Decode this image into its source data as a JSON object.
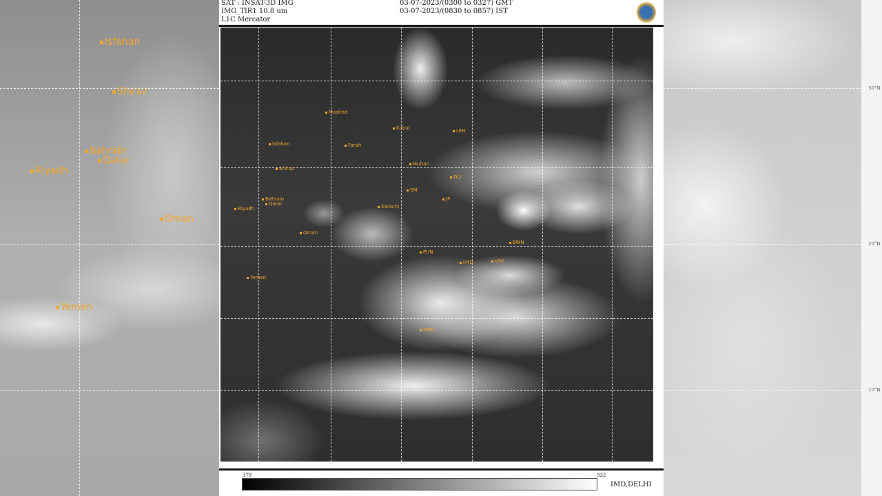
{
  "header": {
    "satellite": "SAT : INSAT-3D IMG",
    "channel": "IMG_TIR1 10.8 um",
    "projection": "L1C Mercator",
    "time_gmt": "03-07-2023/(0300 to 0327) GMT",
    "time_ist": "03-07-2023/(0830 to 0857) IST"
  },
  "colorbar": {
    "min": "378",
    "max": "932",
    "credit": "IMD,DELHI"
  },
  "background_left": {
    "labels": [
      "Isfahan",
      "Shiraz",
      "Bahrain",
      "Qatar",
      "Riyadh",
      "Oman",
      "Yemen"
    ]
  },
  "background_right": {
    "lat_labels": [
      "30°N",
      "20°N",
      "10°N"
    ]
  },
  "map": {
    "labels": [
      "Mashhd",
      "Isfahan",
      "Farah",
      "Kabul",
      "Shiraz",
      "Multan",
      "Bahrain",
      "Qatar",
      "Riyadh",
      "Karachi",
      "Oman",
      "Yemen",
      "LEH",
      "DLI",
      "SM",
      "JP",
      "HYD",
      "VSK",
      "MNG",
      "PUN",
      "BWN"
    ]
  },
  "colors": {
    "label": "#f0a830",
    "grid": "#ffffff"
  }
}
